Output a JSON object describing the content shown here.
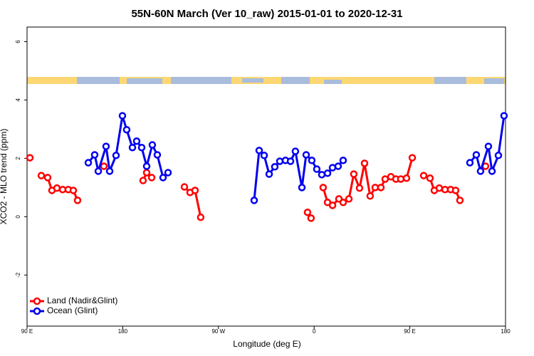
{
  "chart_data": {
    "type": "line",
    "title": "55N-60N March (Ver 10_raw)   2015-01-01 to 2020-12-31",
    "x_label": "Longitude (deg E)",
    "y_label": "XCO2 - MLO trend (ppm)",
    "xlim": [
      90,
      540
    ],
    "ylim": [
      -3.75,
      6.5
    ],
    "xticks": [
      {
        "value": 90,
        "label": "90 E"
      },
      {
        "value": 180,
        "label": "180"
      },
      {
        "value": 270,
        "label": "90 W"
      },
      {
        "value": 360,
        "label": "0"
      },
      {
        "value": 450,
        "label": "90 E"
      },
      {
        "value": 540,
        "label": "180"
      }
    ],
    "yticks": [
      -2,
      0,
      2,
      4,
      6
    ],
    "legend": "bottom-left",
    "series": [
      {
        "name": "Land (Nadir&Glint)",
        "color": "#ff0000",
        "x": [
          92.7,
          null,
          103.4,
          109.4,
          113.4,
          118.1,
          123.5,
          128.8,
          133.5,
          137.5,
          null,
          162.3,
          null,
          199.1,
          202.5,
          207.2,
          null,
          238.0,
          243.3,
          248.0,
          253.3,
          null,
          353.8,
          357.1,
          null,
          368.5,
          372.6,
          377.3,
          383.3,
          387.3,
          392.7,
          397.3,
          402.7,
          407.4,
          412.7,
          417.4,
          422.8,
          426.8,
          432.2,
          436.9,
          441.5,
          446.9,
          452.3,
          null,
          463.0,
          469.0,
          473.0,
          477.7,
          483.1,
          488.4,
          493.1,
          497.1,
          null,
          521.2
        ],
        "values": [
          2.02,
          null,
          1.41,
          1.34,
          0.9,
          0.98,
          0.93,
          0.93,
          0.9,
          0.56,
          null,
          1.73,
          null,
          1.24,
          1.51,
          1.34,
          null,
          1.02,
          0.83,
          0.9,
          -0.02,
          null,
          0.15,
          -0.05,
          null,
          1.0,
          0.49,
          0.39,
          0.61,
          0.49,
          0.61,
          1.46,
          0.98,
          1.83,
          0.71,
          1.0,
          1.0,
          1.29,
          1.37,
          1.29,
          1.29,
          1.32,
          2.02,
          null,
          1.41,
          1.32,
          0.9,
          0.98,
          0.93,
          0.93,
          0.9,
          0.56,
          null,
          1.73
        ]
      },
      {
        "name": "Ocean (Glint)",
        "color": "#0000ee",
        "x": [
          147.6,
          153.6,
          157.0,
          164.3,
          167.7,
          173.7,
          179.7,
          183.7,
          189.1,
          193.1,
          197.8,
          202.5,
          207.8,
          212.5,
          217.9,
          222.6,
          null,
          303.6,
          308.3,
          313.0,
          317.7,
          323.0,
          327.7,
          333.1,
          337.8,
          342.4,
          348.5,
          352.5,
          357.8,
          362.5,
          367.2,
          372.6,
          377.3,
          382.6,
          387.3,
          null,
          506.5,
          512.5,
          516.5,
          523.9,
          527.3,
          533.3,
          538.6
        ],
        "values": [
          1.85,
          2.12,
          1.56,
          2.41,
          1.56,
          2.1,
          3.46,
          2.98,
          2.37,
          2.59,
          2.37,
          1.73,
          2.46,
          2.12,
          1.34,
          1.51,
          null,
          0.56,
          2.27,
          2.1,
          1.46,
          1.71,
          1.9,
          1.93,
          1.9,
          2.24,
          1.0,
          2.12,
          1.93,
          1.63,
          1.44,
          1.49,
          1.68,
          1.73,
          1.93,
          null,
          1.85,
          2.12,
          1.56,
          2.41,
          1.56,
          2.1,
          3.46
        ]
      }
    ]
  }
}
